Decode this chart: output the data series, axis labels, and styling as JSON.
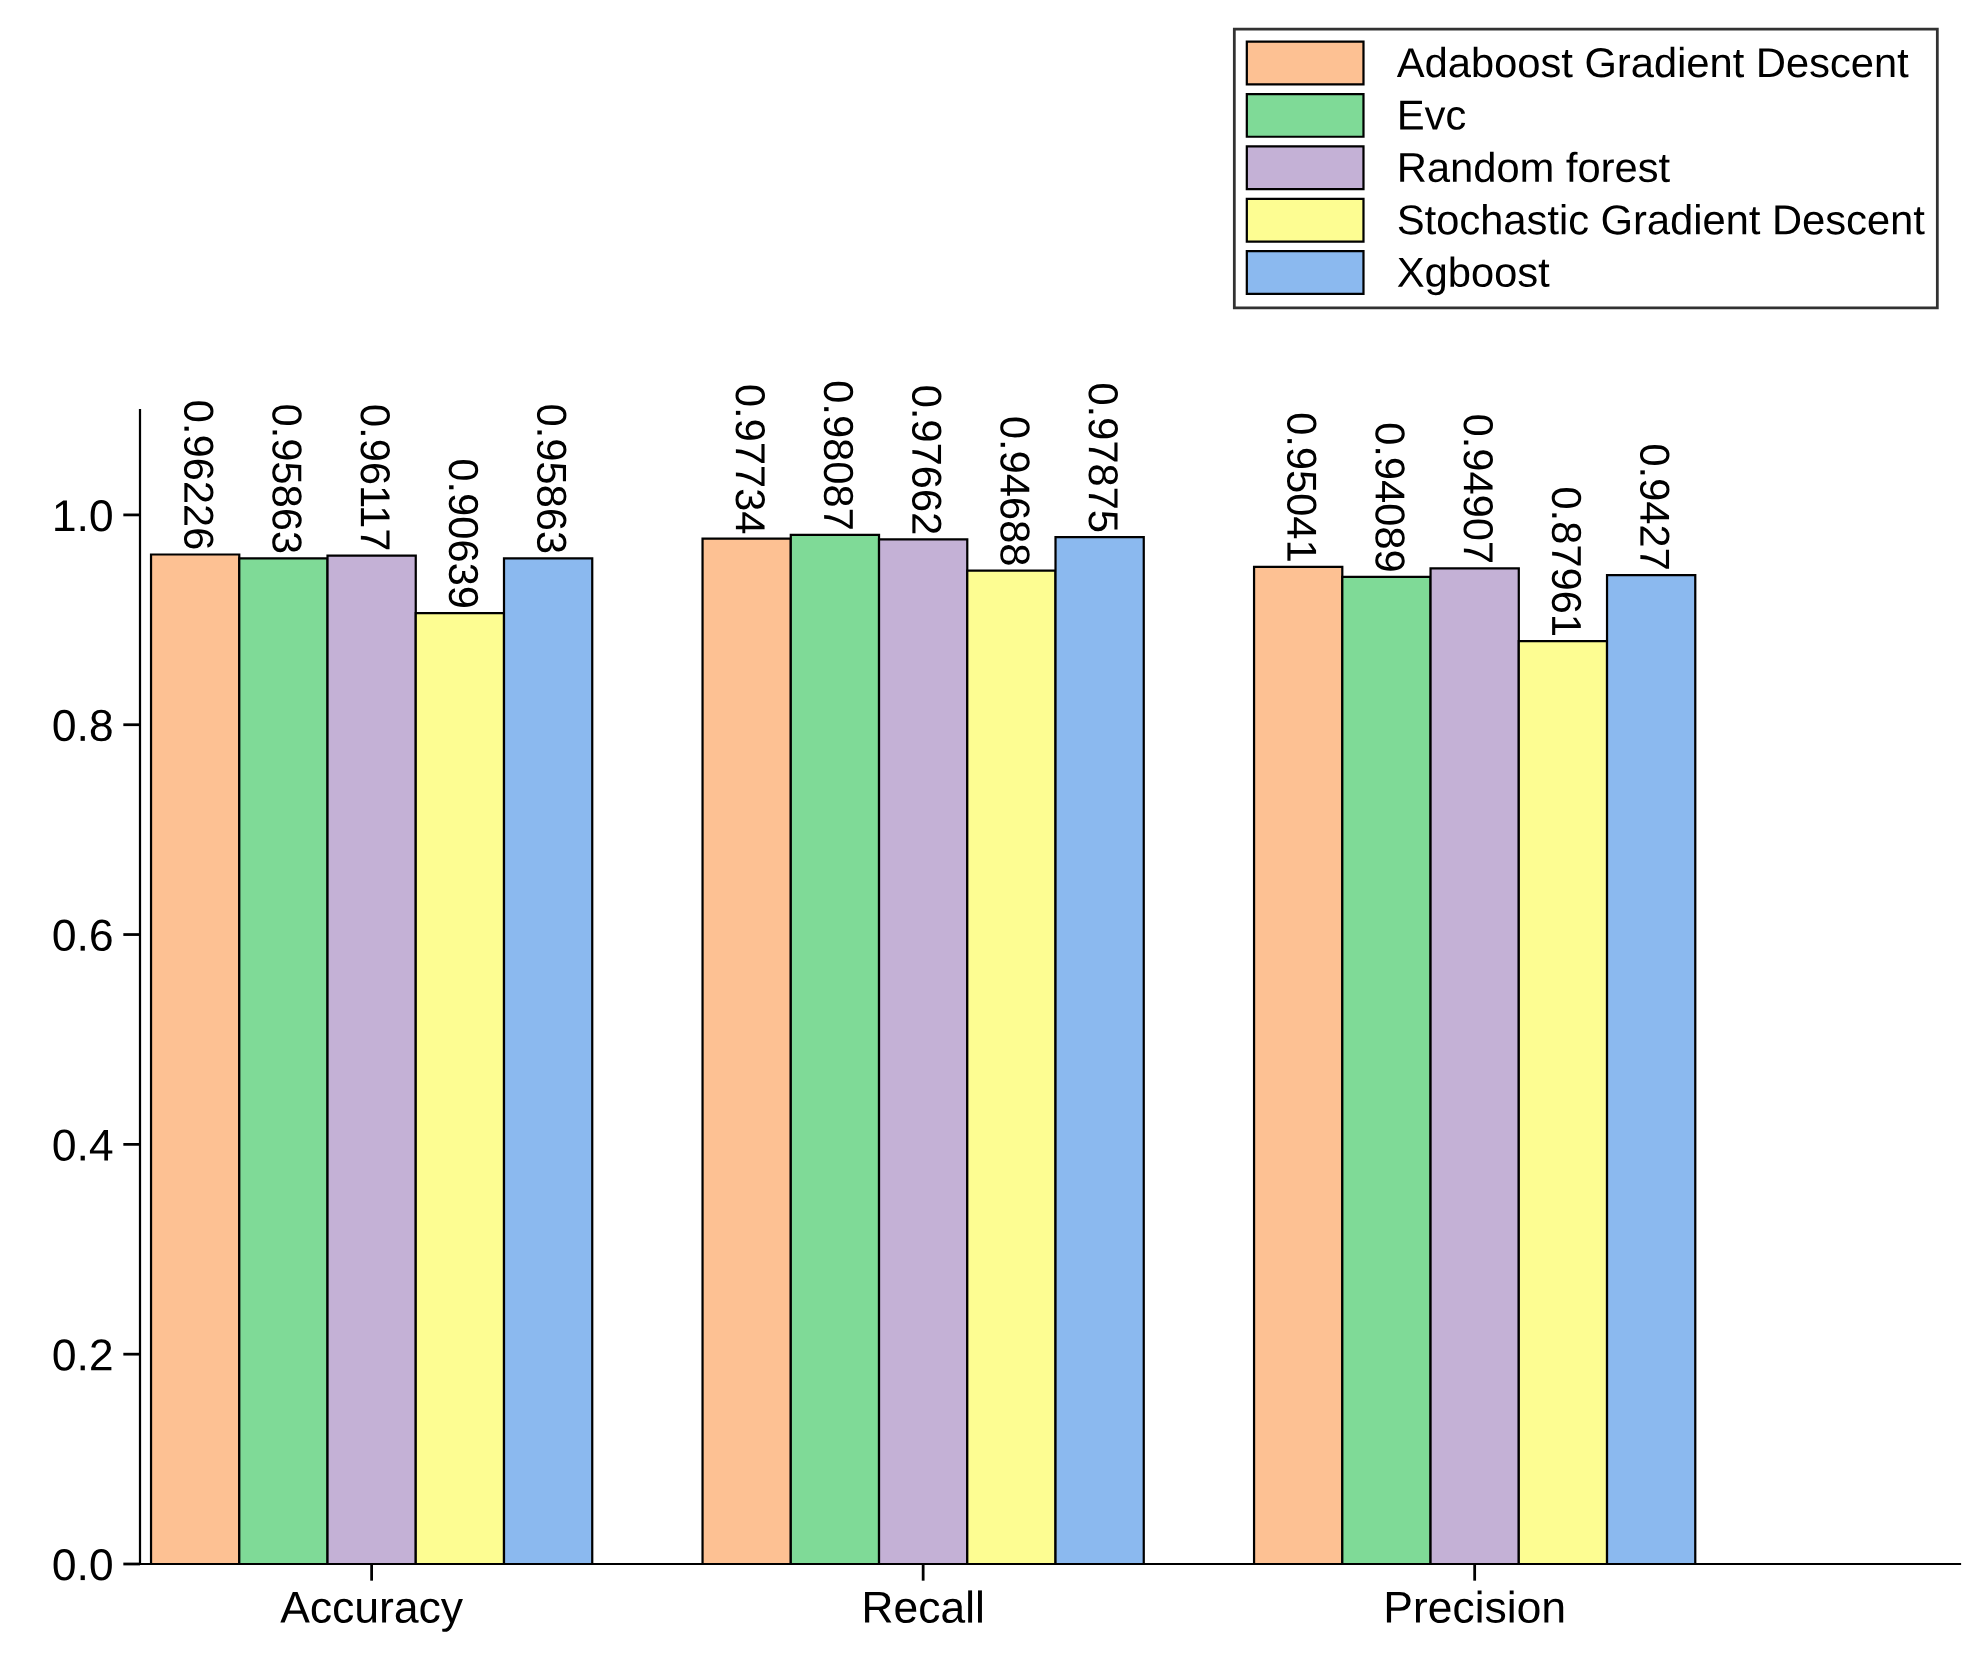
{
  "chart_data": {
    "type": "bar",
    "categories": [
      "Accuracy",
      "Recall",
      "Precision"
    ],
    "series": [
      {
        "name": "Adaboost Gradient Descent",
        "color": "#fdc193",
        "values": [
          0.96226,
          0.97734,
          0.95041
        ]
      },
      {
        "name": "Evc",
        "color": "#7fda97",
        "values": [
          0.95863,
          0.98087,
          0.94089
        ]
      },
      {
        "name": "Random forest",
        "color": "#c4b1d6",
        "values": [
          0.96117,
          0.97662,
          0.94907
        ]
      },
      {
        "name": "Stochastic Gradient Descent",
        "color": "#fdfd92",
        "values": [
          0.90639,
          0.94688,
          0.87961
        ]
      },
      {
        "name": "Xgboost",
        "color": "#8bb9ef",
        "values": [
          0.95863,
          0.97875,
          0.9427
        ]
      }
    ],
    "ylim": [
      0,
      1.1
    ],
    "yticks": [
      {
        "value": 0,
        "label": "0.0"
      },
      0.2,
      0.4,
      0.6,
      0.8,
      {
        "value": 1,
        "label": "1.0"
      }
    ],
    "data_labels": true,
    "legend": "top right",
    "grid": false
  }
}
